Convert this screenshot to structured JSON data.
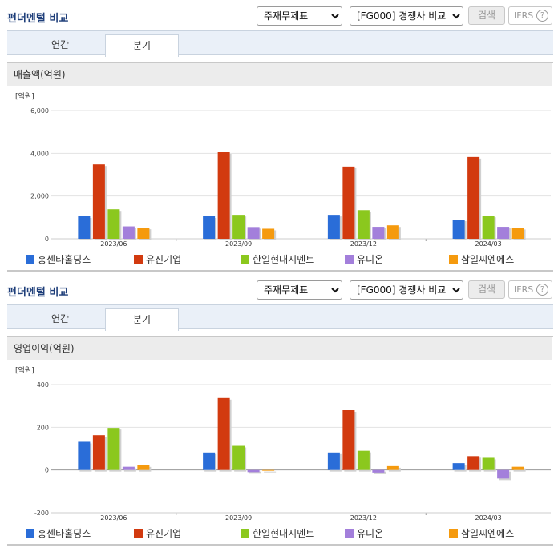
{
  "panels": [
    {
      "title": "펀더멘털 비교",
      "statement_select": "주재무제표",
      "compare_select": "[FG000] 경쟁사 비교",
      "search_label": "검색",
      "ifrs_label": "IFRS",
      "help_glyph": "?",
      "tabs": [
        {
          "label": "연간",
          "active": false
        },
        {
          "label": "분기",
          "active": true
        }
      ],
      "chart_title": "매출액(억원)"
    },
    {
      "title": "펀더멘털 비교",
      "statement_select": "주재무제표",
      "compare_select": "[FG000] 경쟁사 비교",
      "search_label": "검색",
      "ifrs_label": "IFRS",
      "help_glyph": "?",
      "tabs": [
        {
          "label": "연간",
          "active": false
        },
        {
          "label": "분기",
          "active": true
        }
      ],
      "chart_title": "영업이익(억원)"
    }
  ],
  "chart_data": [
    {
      "type": "bar",
      "unit_label": "[억원]",
      "categories": [
        "2023/06",
        "2023/09",
        "2023/12",
        "2024/03"
      ],
      "ylim": [
        0,
        6000
      ],
      "yticks": [
        "6,000",
        "4,000",
        "2,000",
        "0"
      ],
      "series": [
        {
          "name": "홍센타홀딩스",
          "color": "#2a6dd8",
          "values": [
            1050,
            1050,
            1120,
            900
          ]
        },
        {
          "name": "유진기업",
          "color": "#d23a0f",
          "values": [
            3480,
            4050,
            3380,
            3830
          ]
        },
        {
          "name": "한일현대시멘트",
          "color": "#8bc81e",
          "values": [
            1380,
            1120,
            1340,
            1080
          ]
        },
        {
          "name": "유니온",
          "color": "#a37fdb",
          "values": [
            580,
            550,
            560,
            560
          ]
        },
        {
          "name": "삼일씨엔에스",
          "color": "#f59a0e",
          "values": [
            520,
            470,
            630,
            510
          ]
        }
      ]
    },
    {
      "type": "bar",
      "unit_label": "[억원]",
      "categories": [
        "2023/06",
        "2023/09",
        "2023/12",
        "2024/03"
      ],
      "ylim": [
        -200,
        400
      ],
      "yticks": [
        "400",
        "200",
        "0",
        "-200"
      ],
      "series": [
        {
          "name": "홍센타홀딩스",
          "color": "#2a6dd8",
          "values": [
            132,
            82,
            82,
            32
          ]
        },
        {
          "name": "유진기업",
          "color": "#d23a0f",
          "values": [
            163,
            337,
            280,
            65
          ]
        },
        {
          "name": "한일현대시멘트",
          "color": "#8bc81e",
          "values": [
            197,
            113,
            90,
            57
          ]
        },
        {
          "name": "유니온",
          "color": "#a37fdb",
          "values": [
            15,
            -10,
            -12,
            -40
          ]
        },
        {
          "name": "삼일씨엔에스",
          "color": "#f59a0e",
          "values": [
            22,
            0,
            18,
            15
          ]
        }
      ]
    }
  ]
}
